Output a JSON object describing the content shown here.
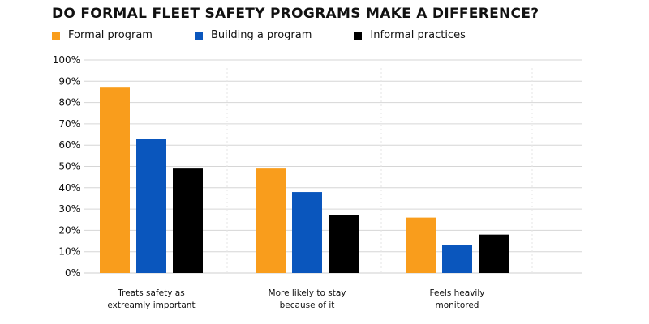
{
  "chart_data": {
    "type": "bar",
    "title": "DO FORMAL FLEET SAFETY PROGRAMS MAKE A DIFFERENCE?",
    "categories": [
      [
        "Treats safety as",
        "extreamly important"
      ],
      [
        "More likely to stay",
        "because of it"
      ],
      [
        "Feels heavily",
        "monitored"
      ]
    ],
    "series": [
      {
        "name": "Formal program",
        "color": "#F99D1C",
        "values": [
          87,
          49,
          26
        ]
      },
      {
        "name": "Building a program",
        "color": "#0A56BD",
        "values": [
          63,
          38,
          13
        ]
      },
      {
        "name": "Informal practices",
        "color": "#000000",
        "values": [
          49,
          27,
          18
        ]
      }
    ],
    "y_ticks": [
      "0%",
      "10%",
      "20%",
      "30%",
      "40%",
      "50%",
      "60%",
      "70%",
      "80%",
      "90%",
      "100%"
    ],
    "ylim": [
      0,
      100
    ],
    "grid": true,
    "legend_position": "top-left"
  }
}
